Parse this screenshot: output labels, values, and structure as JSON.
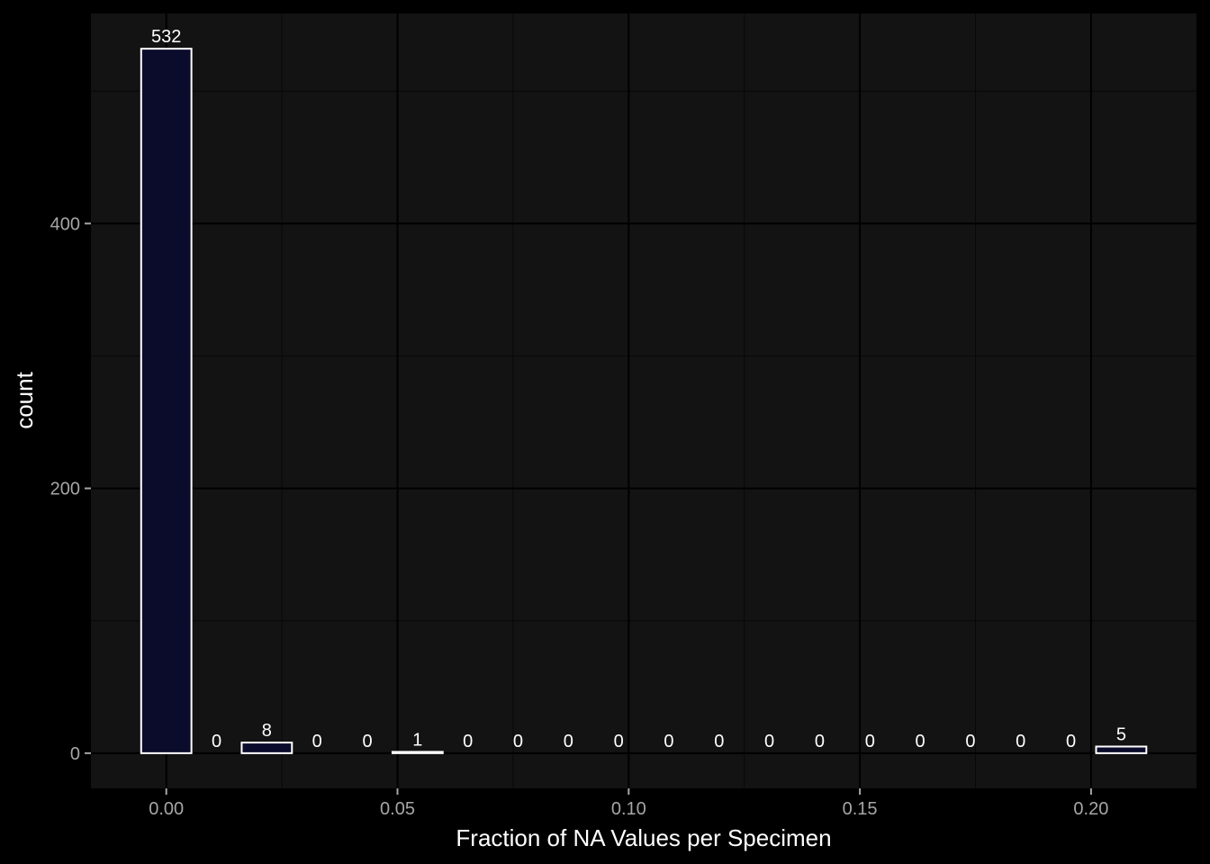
{
  "chart_data": {
    "type": "bar",
    "x": [
      0.0,
      0.01087,
      0.021739,
      0.032609,
      0.043478,
      0.054348,
      0.065217,
      0.076087,
      0.086957,
      0.097826,
      0.108696,
      0.119565,
      0.130435,
      0.141304,
      0.152174,
      0.163043,
      0.173913,
      0.184783,
      0.195652,
      0.206522
    ],
    "values": [
      532,
      0,
      8,
      0,
      0,
      1,
      0,
      0,
      0,
      0,
      0,
      0,
      0,
      0,
      0,
      0,
      0,
      0,
      0,
      5
    ],
    "labels": [
      "532",
      "0",
      "8",
      "0",
      "0",
      "1",
      "0",
      "0",
      "0",
      "0",
      "0",
      "0",
      "0",
      "0",
      "0",
      "0",
      "0",
      "0",
      "0",
      "5"
    ],
    "title": "",
    "xlabel": "Fraction of NA Values per Specimen",
    "ylabel": "count",
    "xlim": [
      -0.0163,
      0.2228
    ],
    "ylim": [
      -26.6,
      558.6
    ],
    "x_ticks": [
      0.0,
      0.05,
      0.1,
      0.15,
      0.2
    ],
    "x_tick_labels": [
      "0.00",
      "0.05",
      "0.10",
      "0.15",
      "0.20"
    ],
    "y_ticks": [
      0,
      200,
      400
    ],
    "y_tick_labels": [
      "0",
      "200",
      "400"
    ],
    "x_minor_ticks": [
      0.025,
      0.075,
      0.125,
      0.175
    ],
    "y_minor_ticks": [
      100,
      300,
      500
    ],
    "grid": true,
    "colors": {
      "page_background": "#000000",
      "panel_background": "#131313",
      "grid_major": "#000000",
      "grid_minor": "#080808",
      "bar_fill": "#0b0b2c",
      "bar_stroke": "#ffffff",
      "tick_mark": "#a6a6a6"
    }
  }
}
